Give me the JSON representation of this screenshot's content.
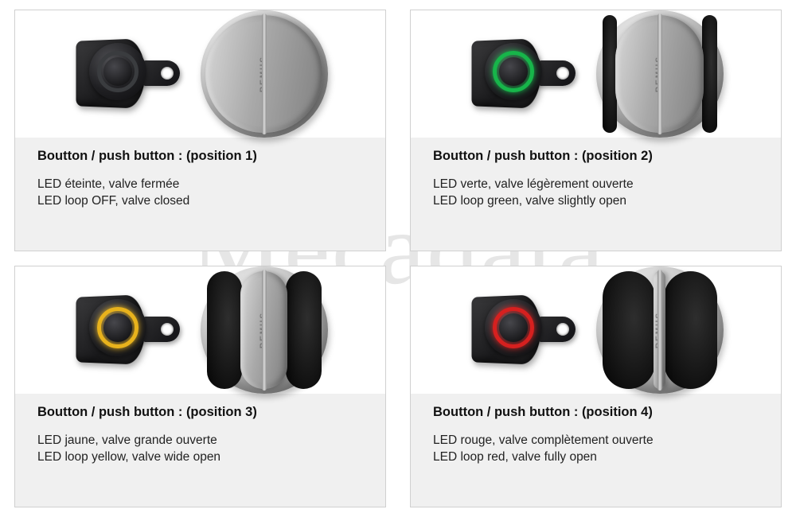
{
  "watermark": "Mecadata",
  "valve_brand": "REMUS",
  "led_off_color": "#3a3c3f",
  "panels": [
    {
      "title": "Boutton / push button : (position 1)",
      "desc_fr": "LED éteinte, valve fermée",
      "desc_en": "LED loop OFF, valve closed",
      "led_color": "#3a3c3f",
      "led_glow": "none",
      "valve_open_pct": 0
    },
    {
      "title": "Boutton / push button : (position 2)",
      "desc_fr": "LED verte, valve légèrement ouverte",
      "desc_en": "LED loop green, valve slightly open",
      "led_color": "#17b54a",
      "led_glow": "0 0 8px #17b54a",
      "valve_open_pct": 25
    },
    {
      "title": "Boutton / push button : (position 3)",
      "desc_fr": "LED jaune, valve grande ouverte",
      "desc_en": "LED loop yellow, valve wide open",
      "led_color": "#e8b21c",
      "led_glow": "0 0 8px #e8b21c",
      "valve_open_pct": 60
    },
    {
      "title": "Boutton / push button : (position 4)",
      "desc_fr": "LED rouge, valve complètement ouverte",
      "desc_en": "LED loop red, valve fully open",
      "led_color": "#d6201f",
      "led_glow": "0 0 8px #d6201f",
      "valve_open_pct": 90
    }
  ]
}
